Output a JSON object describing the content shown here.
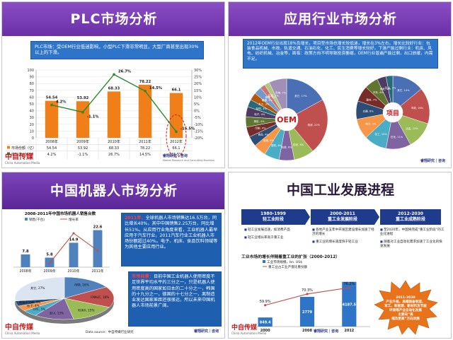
{
  "panel1": {
    "title": "PLC市场分析",
    "note": "PLC市场：受OEM行业低迷影响，小型PLC下滑非常明显，大型厂商甚至出现30%以上的下滑。",
    "logo": "中自传媒",
    "logo_sub": "China Automation Media",
    "brand": "睿翔研究｜咨询",
    "brand_sub": "Market Research and Consulting Business",
    "chart_data": {
      "type": "bar",
      "categories": [
        "2008年",
        "2009年",
        "2010年",
        "2011年",
        "2012年"
      ],
      "series": [
        {
          "name": "市场份额（亿）",
          "type": "bar",
          "values": [
            54.54,
            53.92,
            68.33,
            78.22,
            66.1
          ]
        },
        {
          "name": "增长率（YOY）",
          "type": "line",
          "values": [
            4.2,
            -1.1,
            26.7,
            14.5,
            -15.5
          ]
        }
      ],
      "bar_labels": [
        "54.54",
        "53.92",
        "68.33",
        "78.22",
        "66.1"
      ],
      "line_labels": [
        "4.2%",
        "-1.1%",
        "26.7%",
        "14.5%",
        "-15.5%"
      ],
      "ylim": [
        0,
        100
      ],
      "yticks": [
        "0",
        "10",
        "20",
        "30",
        "40",
        "50",
        "60",
        "70",
        "80",
        "90",
        "100"
      ],
      "y2lim": [
        -20,
        30
      ],
      "y2ticks": [
        "-20%",
        "-15%",
        "-10%",
        "-5%",
        "0%",
        "5%",
        "10%",
        "15%",
        "20%",
        "25%",
        "30%"
      ],
      "table_rows": [
        {
          "label": "市场份额（亿）",
          "cells": [
            "54.54",
            "53.92",
            "68.33",
            "78.22",
            "66.1"
          ]
        },
        {
          "label": "增长率（YOY）",
          "cells": [
            "4.2%",
            "-1.1%",
            "26.7%",
            "14.5%",
            "-15.5%"
          ]
        }
      ],
      "colors": {
        "bar": "#f07f1a",
        "line": "#2a8a2a",
        "highlight": "#d01010"
      }
    }
  },
  "panel2": {
    "title": "应用行业市场分析",
    "note": "2012年OEM行业出现18%负增长，项目型市场也增长较低迷，增长在3%左右。增长比较好行业：包装食品机械、市政、轨道交通、石油石化、化工、民生消费等增长较好。下游产能过剩行业：机床、风电、纺织机械、冶金等，面临：政策方向不明导致投资萎缩，OEM行业普遍产能过剩，出口放缓，内需不足。",
    "chart_data": [
      {
        "type": "pie",
        "center_label": "OEM",
        "labels": [
          "其它, 17%",
          "机床, 22%",
          "纺织, 8%",
          "包装, 6%",
          "塑机, 6%",
          "电梯, 5%",
          "食品, 4%",
          "印刷, 4%",
          "橡胶, 4%",
          "电子, 4%",
          "制药, 3%",
          "木工, 3%",
          "暖通, 3%",
          "玻璃, 2%",
          "起重, 2%",
          "风电, 7%"
        ],
        "values": [
          17,
          22,
          8,
          6,
          6,
          5,
          4,
          4,
          4,
          4,
          3,
          3,
          3,
          2,
          2,
          7
        ]
      },
      {
        "type": "pie",
        "center_label": "项目",
        "labels": [
          "其它, 14%",
          "市政, 16%",
          "冶金, 12%",
          "石化, 11%",
          "化工, 10%",
          "电力, 9%",
          "交通, 8%",
          "建材, 7%",
          "汽车, 6%",
          "造纸, 4%",
          "矿山, 3%"
        ],
        "values": [
          14,
          16,
          12,
          11,
          10,
          9,
          8,
          7,
          6,
          4,
          3
        ]
      }
    ],
    "pie_colors": [
      "#4a6fb5",
      "#c0504d",
      "#9bbb59",
      "#8064a2",
      "#4bacc6",
      "#f79646",
      "#2c4d75",
      "#772c2a",
      "#5f7530",
      "#4d3b62",
      "#276a7c",
      "#b65708",
      "#729aca",
      "#cd7371",
      "#afc97a",
      "#a18fb8"
    ]
  },
  "panel3": {
    "title": "中国机器人市场分析",
    "bar_chart": {
      "type": "bar",
      "title": "2008-2011年中国市场机器人销售台数",
      "categories": [
        "2008年",
        "2009年",
        "2010年",
        "2011年"
      ],
      "series": [
        {
          "name": "销售(千台)",
          "values": [
            7.8,
            5.8,
            14.9,
            22.6
          ]
        },
        {
          "name": "增长率",
          "values": [
            null,
            -26,
            157,
            51
          ]
        }
      ],
      "bar_labels": [
        "7.8",
        "5.8",
        "14.9",
        "22.6"
      ],
      "ylim": [
        0,
        25
      ]
    },
    "pie_chart": {
      "type": "pie",
      "labels": [
        "ABB, 16%",
        "FANUC, 16%",
        "KUKA, 15%",
        "安川, 13%",
        "OTC, 5%",
        "松下, 4%",
        "那智不二越, 4%",
        "其它, 27%"
      ],
      "values": [
        16,
        16,
        15,
        13,
        5,
        4,
        4,
        27
      ]
    },
    "note1_year": "2011年，",
    "note1": "全球机器人市场销售达16.5万台，同比增长40%，其中中国销售2.25万台，同比增长51%。从应用行业角度来看，工业机器人最早应用于汽车行业，2011汽车行业工业机器人市场份额超过40%。电子、机床、食品饮料领域等为其他主要应用行业。",
    "note2_head": "市场前景：",
    "note2": "目前中国工业机器人使用密度不足世界平均水平的三分之一，只是机器人使用密度高的国家如日本的二十分之一，韩国的十九分之一，德国的十七分之一，离制造业发达国家差距还很很远，所以未来中国机器人市场前景广阔。",
    "source": "Data source：中自传媒行业研究",
    "logo": "中自传媒",
    "logo_sub": "China Automation Media",
    "brand": "睿翔研究｜咨询"
  },
  "panel4": {
    "title": "中国工业发展进程",
    "phases": [
      {
        "years": "1980-1999",
        "name": "轻工业阶段",
        "items": [
          "轻工业发展迅速，如消费产品",
          "轻工业增长率高于重工业"
        ]
      },
      {
        "years": "2000-2011",
        "name": "重工业发展阶段",
        "items": [
          "各地产业五年中开发区建设增长加速了经济的增长",
          "重工业的增长速度快于轻工业"
        ]
      },
      {
        "years": "2012-2030",
        "name": "重工业成熟阶段",
        "items": [
          "至2020年，中国将完成“重工业阶段”的工业化进程",
          "随着对工业自动化需求加速了工业化的快速发展"
        ]
      }
    ],
    "chart_title": "工业市场的增长伴随着重工业的扩张（2000-2012）",
    "legend": [
      "工业市场规模，bn. US$",
      "重工业占工业产值比重份额"
    ],
    "chart_data": {
      "type": "bar",
      "categories": [
        "2000",
        "2008",
        "2012"
      ],
      "series": [
        {
          "name": "工业市场规模，bn. US$",
          "values": [
            849.4,
            2779,
            4187.5
          ]
        },
        {
          "name": "重工业占工业产值比重份额",
          "values": [
            59.9,
            70.3,
            76.2
          ]
        }
      ],
      "bar_labels": [
        "849.4",
        "2779",
        "4187.5"
      ],
      "line_labels": [
        "59.9%",
        "70.3%",
        "76.2%"
      ]
    },
    "star_lines": [
      "2011-2030",
      "产业升级，高端装备制造、",
      "军工、新能源、新材料及节能",
      "环保等产业自动化发展",
      "主要向“高",
      "端及更高”方向发展"
    ],
    "logo": "中自传媒",
    "logo_sub": "China Automation Media",
    "brand": "睿翔研究｜咨询"
  }
}
